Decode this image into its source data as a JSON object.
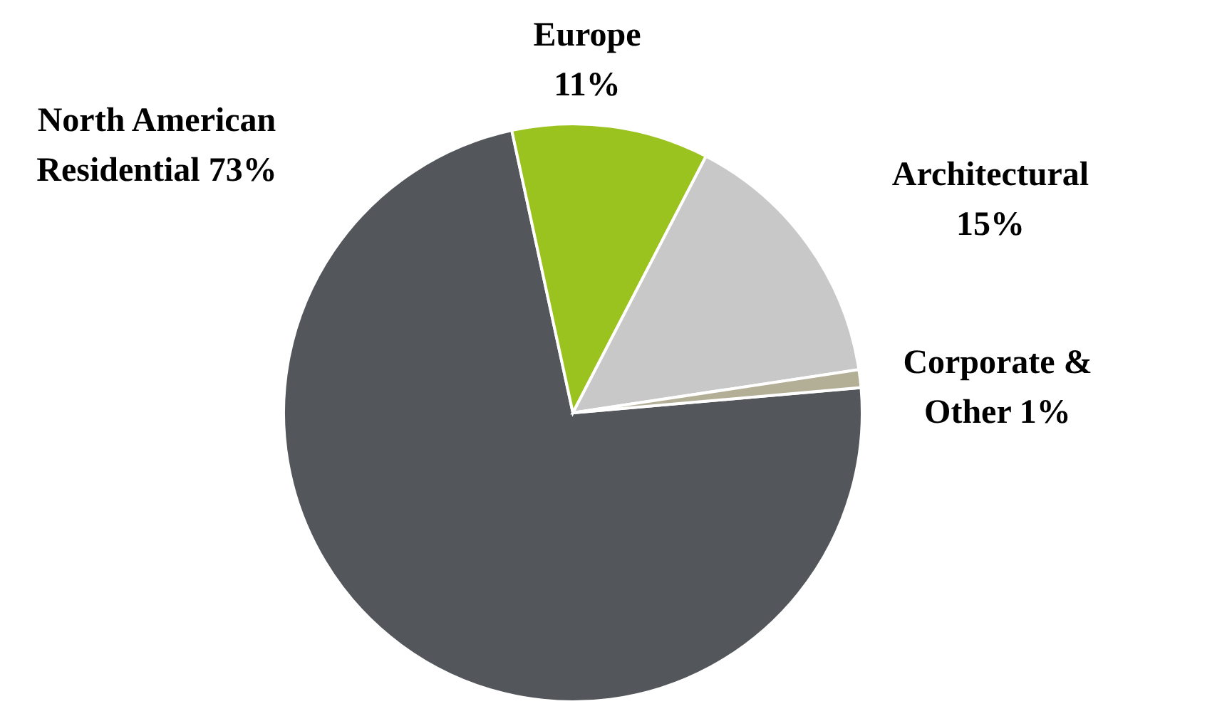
{
  "chart_data": {
    "type": "pie",
    "categories": [
      "North American Residential",
      "Europe",
      "Architectural",
      "Corporate & Other"
    ],
    "values": [
      73,
      11,
      15,
      1
    ],
    "colors": [
      "#53565a",
      "#9bc31f",
      "#c8c8c8",
      "#b3ae96"
    ],
    "value_labels": [
      "73%",
      "11%",
      "15%",
      "1%"
    ]
  }
}
